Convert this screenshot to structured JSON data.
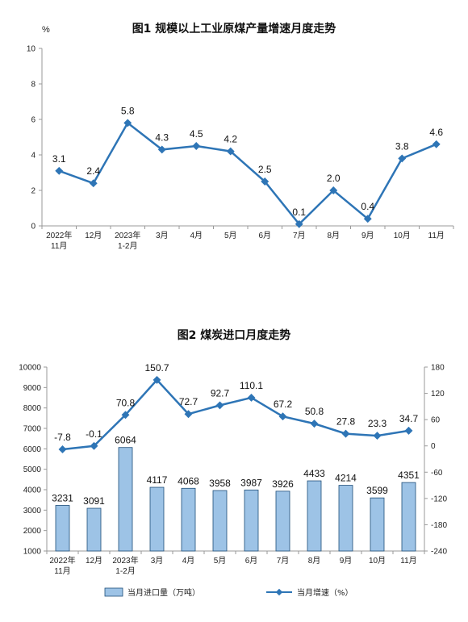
{
  "chart_data": [
    {
      "type": "line",
      "title": "图1  规模以上工业原煤产量增速月度走势",
      "yunit": "%",
      "ylim": [
        0,
        10
      ],
      "yticks": [
        "0",
        "2",
        "4",
        "6",
        "8",
        "10"
      ],
      "categories": [
        "2022年\n11月",
        "12月",
        "2023年\n1-2月",
        "3月",
        "4月",
        "5月",
        "6月",
        "7月",
        "8月",
        "9月",
        "10月",
        "11月"
      ],
      "values": [
        3.1,
        2.4,
        5.8,
        4.3,
        4.5,
        4.2,
        2.5,
        0.1,
        2.0,
        0.4,
        3.8,
        4.6
      ],
      "data_labels": [
        "3.1",
        "2.4",
        "5.8",
        "4.3",
        "4.5",
        "4.2",
        "2.5",
        "0.1",
        "2.0",
        "0.4",
        "3.8",
        "4.6"
      ],
      "color": "#2E75B6",
      "grid": false
    },
    {
      "type": "bar+line",
      "title": "图2  煤炭进口月度走势",
      "categories": [
        "2022年\n11月",
        "12月",
        "2023年\n1-2月",
        "3月",
        "4月",
        "5月",
        "6月",
        "7月",
        "8月",
        "9月",
        "10月",
        "11月"
      ],
      "left_axis": {
        "ylim": [
          1000,
          10000
        ],
        "ticks": [
          "1000",
          "2000",
          "3000",
          "4000",
          "5000",
          "6000",
          "7000",
          "8000",
          "9000",
          "10000"
        ]
      },
      "right_axis": {
        "ylim": [
          -240,
          180
        ],
        "ticks": [
          "180",
          "120",
          "60",
          "0",
          "-60",
          "-120",
          "-180",
          "-240"
        ]
      },
      "series": [
        {
          "name": "当月进口量（万吨）",
          "type": "bar",
          "axis": "left",
          "color": "#9DC3E6",
          "values": [
            3231,
            3091,
            6064,
            4117,
            4068,
            3958,
            3987,
            3926,
            4433,
            4214,
            3599,
            4351
          ],
          "data_labels": [
            "3231",
            "3091",
            "6064",
            "4117",
            "4068",
            "3958",
            "3987",
            "3926",
            "4433",
            "4214",
            "3599",
            "4351"
          ]
        },
        {
          "name": "当月增速（%）",
          "type": "line",
          "axis": "right",
          "color": "#2E75B6",
          "values": [
            -7.8,
            -0.1,
            70.8,
            150.7,
            72.7,
            92.7,
            110.1,
            67.2,
            50.8,
            27.8,
            23.3,
            34.7
          ],
          "data_labels": [
            "-7.8",
            "-0.1",
            "70.8",
            "150.7",
            "72.7",
            "92.7",
            "110.1",
            "67.2",
            "50.8",
            "27.8",
            "23.3",
            "34.7"
          ]
        }
      ],
      "legend": "bottom",
      "grid": false
    }
  ]
}
